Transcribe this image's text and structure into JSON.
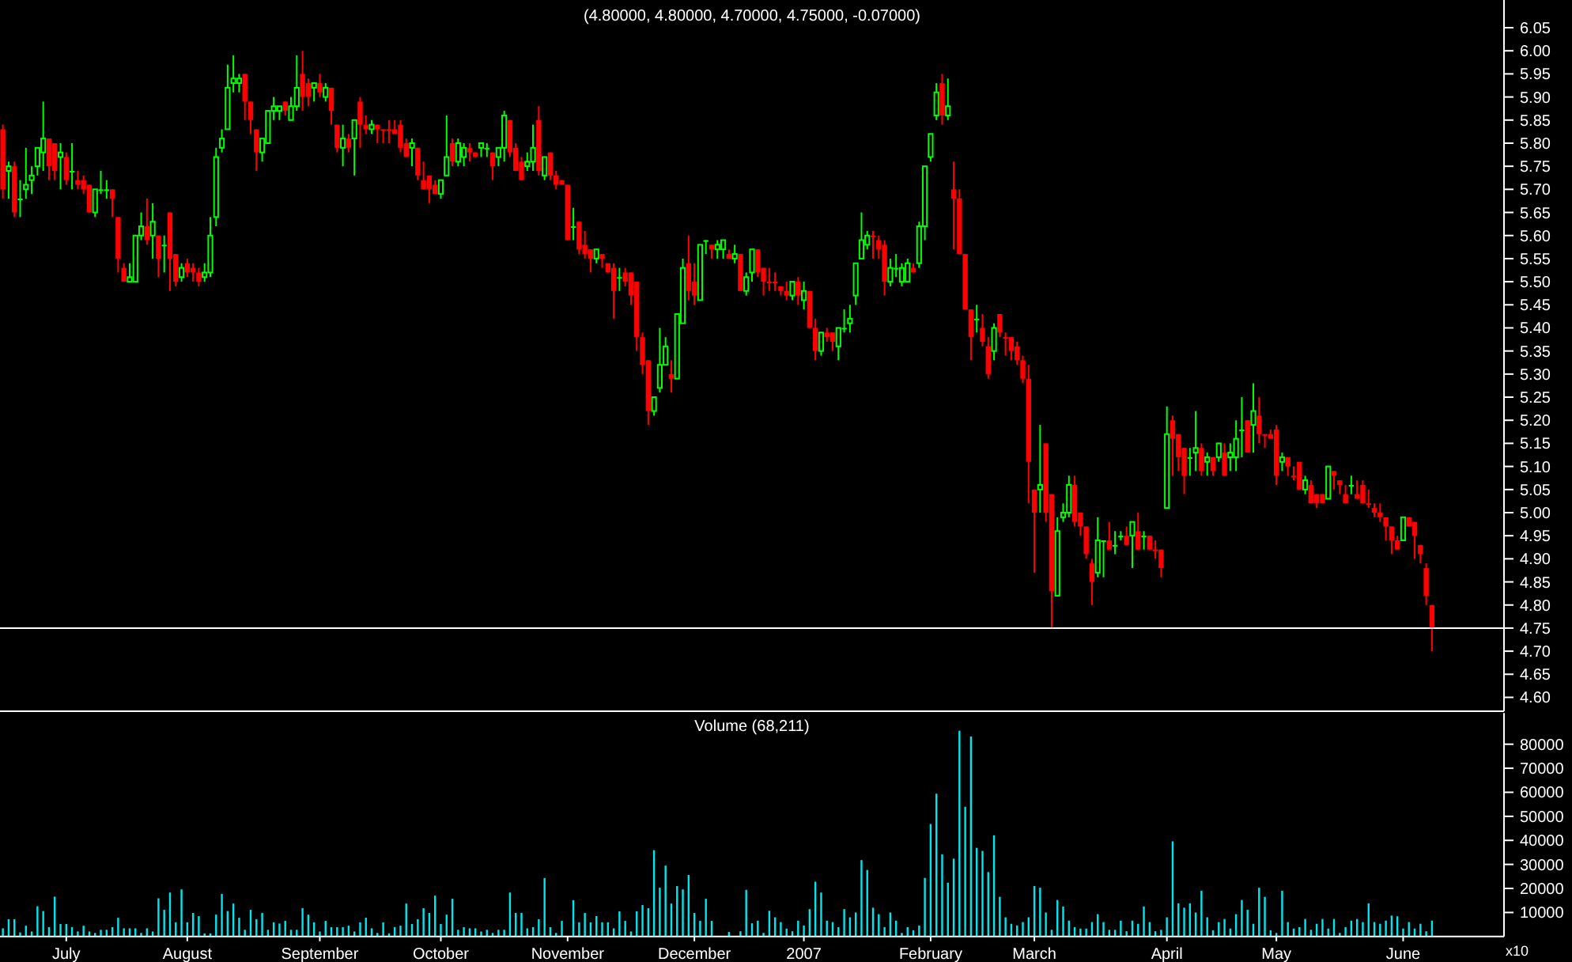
{
  "chart_data": [
    {
      "type": "candlestick",
      "title": "(4.80000, 4.80000, 4.70000, 4.75000, -0.07000)",
      "tick_labels": "y",
      "colors": [
        "#ff0000",
        "#00ff00",
        "#ff0000",
        "#00ff00",
        "#00ff00",
        "#00ff00",
        "#00ff00",
        "#00ff00",
        "#ff0000",
        "#ff0000",
        "#00ff00",
        "#ff0000",
        "#00ff00",
        "#ff0000",
        "#ff0000",
        "#ff0000",
        "#00ff00",
        "#00ff00",
        "#00ff00",
        "#ff0000",
        "#ff0000",
        "#ff0000",
        "#00ff00",
        "#00ff00",
        "#00ff00",
        "#ff0000",
        "#00ff00",
        "#ff0000",
        "#00ff00",
        "#ff0000",
        "#ff0000",
        "#00ff00",
        "#ff0000",
        "#ff0000",
        "#ff0000",
        "#00ff00",
        "#00ff00",
        "#00ff00",
        "#00ff00",
        "#00ff00",
        "#00ff00",
        "#00ff00",
        "#ff0000",
        "#ff0000",
        "#ff0000",
        "#00ff00",
        "#00ff00",
        "#00ff00",
        "#00ff00",
        "#ff0000",
        "#00ff00",
        "#00ff00",
        "#ff0000",
        "#ff0000",
        "#00ff00",
        "#ff0000",
        "#00ff00",
        "#ff0000",
        "#ff0000",
        "#00ff00",
        "#ff0000",
        "#00ff00",
        "#ff0000",
        "#ff0000",
        "#00ff00",
        "#ff0000",
        "#ff0000",
        "#ff0000",
        "#ff0000",
        "#ff0000",
        "#ff0000",
        "#00ff00",
        "#ff0000",
        "#ff0000",
        "#ff0000",
        "#ff0000",
        "#00ff00",
        "#00ff00",
        "#ff0000",
        "#00ff00",
        "#00ff00",
        "#ff0000",
        "#ff0000",
        "#00ff00",
        "#00ff00",
        "#ff0000",
        "#00ff00",
        "#00ff00",
        "#ff0000",
        "#ff0000",
        "#ff0000",
        "#00ff00",
        "#00ff00",
        "#ff0000",
        "#00ff00",
        "#ff0000",
        "#ff0000",
        "#ff0000",
        "#ff0000",
        "#00ff00",
        "#ff0000",
        "#ff0000",
        "#ff0000",
        "#00ff00",
        "#ff0000",
        "#ff0000",
        "#ff0000",
        "#00ff00",
        "#ff0000",
        "#ff0000",
        "#ff0000",
        "#ff0000",
        "#ff0000",
        "#00ff00",
        "#00ff00",
        "#00ff00",
        "#ff0000",
        "#00ff00",
        "#00ff00",
        "#ff0000",
        "#ff0000",
        "#00ff00",
        "#00ff00",
        "#ff0000",
        "#00ff00",
        "#00ff00",
        "#ff0000",
        "#00ff00",
        "#ff0000",
        "#00ff00",
        "#00ff00",
        "#ff0000",
        "#ff0000",
        "#ff0000",
        "#ff0000",
        "#ff0000",
        "#ff0000",
        "#00ff00",
        "#ff0000",
        "#00ff00",
        "#ff0000",
        "#ff0000",
        "#00ff00",
        "#ff0000",
        "#ff0000",
        "#00ff00",
        "#00ff00",
        "#00ff00",
        "#00ff00",
        "#00ff00",
        "#00ff00",
        "#ff0000",
        "#ff0000",
        "#ff0000",
        "#00ff00",
        "#00ff00",
        "#00ff00",
        "#00ff00",
        "#ff0000",
        "#00ff00",
        "#00ff00",
        "#00ff00",
        "#00ff00",
        "#ff0000",
        "#00ff00",
        "#ff0000",
        "#ff0000",
        "#ff0000",
        "#ff0000",
        "#00ff00",
        "#ff0000",
        "#ff0000",
        "#00ff00",
        "#ff0000",
        "#ff0000",
        "#ff0000",
        "#ff0000",
        "#ff0000",
        "#ff0000",
        "#ff0000",
        "#00ff00",
        "#ff0000",
        "#ff0000",
        "#00ff00",
        "#00ff00",
        "#00ff00",
        "#ff0000",
        "#ff0000",
        "#ff0000",
        "#ff0000",
        "#00ff00",
        "#00ff00",
        "#ff0000",
        "#00ff00",
        "#00ff00",
        "#ff0000",
        "#00ff00",
        "#ff0000",
        "#00ff00",
        "#ff0000",
        "#ff0000",
        "#ff0000",
        "#00ff00",
        "#ff0000",
        "#ff0000",
        "#ff0000",
        "#00ff00",
        "#00ff00",
        "#ff0000",
        "#00ff00",
        "#ff0000",
        "#00ff00",
        "#ff0000",
        "#00ff00",
        "#00ff00",
        "#00ff00",
        "#ff0000",
        "#00ff00",
        "#ff0000",
        "#ff0000",
        "#ff0000",
        "#ff0000",
        "#00ff00",
        "#ff0000",
        "#ff0000",
        "#ff0000",
        "#00ff00",
        "#ff0000",
        "#ff0000",
        "#ff0000",
        "#00ff00",
        "#ff0000",
        "#ff0000",
        "#ff0000",
        "#00ff00",
        "#ff0000",
        "#ff0000",
        "#ff0000",
        "#ff0000",
        "#ff0000",
        "#ff0000",
        "#ff0000",
        "#ff0000",
        "#00ff00",
        "#ff0000",
        "#ff0000",
        "#ff0000",
        "#ff0000",
        "#ff0000",
        null,
        null,
        null,
        null,
        null,
        null,
        null,
        null,
        null,
        null,
        null,
        null
      ],
      "ylim": [
        4.57,
        6.11
      ],
      "yticks": [
        {
          "value": 4.6,
          "label": "4.60"
        },
        {
          "value": 4.65,
          "label": "4.65"
        },
        {
          "value": 4.7,
          "label": "4.70"
        },
        {
          "value": 4.75,
          "label": "4.75"
        },
        {
          "value": 4.8,
          "label": "4.80"
        },
        {
          "value": 4.85,
          "label": "4.85"
        },
        {
          "value": 4.9,
          "label": "4.90"
        },
        {
          "value": 4.95,
          "label": "4.95"
        },
        {
          "value": 5.0,
          "label": "5.00"
        },
        {
          "value": 5.05,
          "label": "5.05"
        },
        {
          "value": 5.1,
          "label": "5.10"
        },
        {
          "value": 5.15,
          "label": "5.15"
        },
        {
          "value": 5.2,
          "label": "5.20"
        },
        {
          "value": 5.25,
          "label": "5.25"
        },
        {
          "value": 5.3,
          "label": "5.30"
        },
        {
          "value": 5.35,
          "label": "5.35"
        },
        {
          "value": 5.4,
          "label": "5.40"
        },
        {
          "value": 5.45,
          "label": "5.45"
        },
        {
          "value": 5.5,
          "label": "5.50"
        },
        {
          "value": 5.55,
          "label": "5.55"
        },
        {
          "value": 5.6,
          "label": "5.60"
        },
        {
          "value": 5.65,
          "label": "5.65"
        },
        {
          "value": 5.7,
          "label": "5.70"
        },
        {
          "value": 5.75,
          "label": "5.75"
        },
        {
          "value": 5.8,
          "label": "5.80"
        },
        {
          "value": 5.85,
          "label": "5.85"
        },
        {
          "value": 5.9,
          "label": "5.90"
        },
        {
          "value": 5.95,
          "label": "5.95"
        },
        {
          "value": 6.0,
          "label": "6.00"
        },
        {
          "value": 6.05,
          "label": "6.05"
        }
      ],
      "ref_lines": [
        {
          "axis": "y",
          "value": 4.75,
          "color": "#ffffff"
        }
      ],
      "categories": [
        null,
        null,
        null,
        null,
        null,
        null,
        null,
        null,
        null,
        null,
        null,
        null,
        null,
        null,
        null,
        null,
        null,
        null,
        null,
        null,
        null,
        null,
        null,
        null,
        null,
        null,
        null,
        null,
        null,
        null,
        null,
        null,
        null,
        null,
        null,
        null,
        null,
        null,
        null,
        null,
        null,
        null,
        null,
        null,
        null,
        null,
        null,
        null,
        null,
        null,
        null,
        null,
        null,
        null,
        null,
        null,
        null,
        null,
        null,
        null,
        null,
        null,
        null,
        null,
        null,
        null,
        null,
        null,
        null,
        null,
        null,
        null,
        null,
        null,
        null,
        null,
        null,
        null,
        null,
        null,
        null,
        null,
        null,
        null,
        null,
        null,
        null,
        null,
        null,
        null,
        null,
        null,
        null,
        null,
        null,
        null,
        null,
        null,
        null,
        null,
        null,
        null,
        null,
        null,
        null,
        null,
        null,
        null,
        null,
        null,
        null,
        null,
        null,
        null,
        null,
        null,
        null,
        null,
        null,
        null,
        null,
        null,
        null,
        null,
        null,
        null,
        null,
        null,
        null,
        null,
        null,
        null,
        null,
        null,
        null,
        null,
        null,
        null,
        null,
        null,
        null,
        null,
        null,
        null,
        null,
        null,
        null,
        null,
        null,
        null,
        null,
        null,
        null,
        null,
        null,
        null,
        null,
        null,
        null,
        null,
        null,
        null,
        null,
        null,
        null,
        null,
        null,
        null,
        null,
        null,
        null,
        null,
        null,
        null,
        null,
        null,
        null,
        null,
        null,
        null,
        null,
        null,
        null,
        null,
        null,
        null,
        null,
        null,
        null,
        null,
        null,
        null,
        null,
        null,
        null,
        null,
        null,
        null,
        null,
        null,
        null,
        null,
        null,
        null,
        null,
        null,
        null,
        null,
        null,
        null,
        null,
        null,
        null,
        null,
        null,
        null,
        null,
        null,
        null,
        null,
        null,
        null,
        null,
        null,
        null,
        null,
        null,
        null,
        null,
        null,
        null,
        null,
        null,
        null,
        null,
        null,
        null,
        null,
        null,
        null,
        null,
        null,
        null,
        null,
        null,
        null,
        null,
        null,
        null,
        null,
        null,
        null,
        null,
        null,
        null,
        null,
        null,
        null,
        null,
        null,
        null
      ],
      "ohlc": [
        [
          5.83,
          5.84,
          5.68,
          5.7
        ],
        [
          5.74,
          5.76,
          5.68,
          5.75
        ],
        [
          5.75,
          5.76,
          5.64,
          5.65
        ],
        [
          5.68,
          5.72,
          5.64,
          5.68
        ],
        [
          5.7,
          5.79,
          5.68,
          5.71
        ],
        [
          5.72,
          5.75,
          5.69,
          5.73
        ],
        [
          5.75,
          5.79,
          5.73,
          5.79
        ],
        [
          5.78,
          5.89,
          5.74,
          5.81
        ],
        [
          5.81,
          5.81,
          5.72,
          5.75
        ],
        [
          5.8,
          5.8,
          5.72,
          5.74
        ],
        [
          5.77,
          5.8,
          5.7,
          5.78
        ],
        [
          5.77,
          5.78,
          5.71,
          5.72
        ],
        [
          5.74,
          5.8,
          5.7,
          5.74
        ],
        [
          5.72,
          5.74,
          5.7,
          5.71
        ],
        [
          5.72,
          5.73,
          5.69,
          5.7
        ],
        [
          5.71,
          5.71,
          5.65,
          5.65
        ],
        [
          5.65,
          5.7,
          5.64,
          5.7
        ],
        [
          5.7,
          5.74,
          5.69,
          5.7
        ],
        [
          5.7,
          5.72,
          5.68,
          5.7
        ],
        [
          5.7,
          5.7,
          5.64,
          5.68
        ],
        [
          5.64,
          5.64,
          5.52,
          5.55
        ],
        [
          5.53,
          5.54,
          5.5,
          5.5
        ],
        [
          5.5,
          5.54,
          5.5,
          5.51
        ],
        [
          5.5,
          5.6,
          5.5,
          5.6
        ],
        [
          5.6,
          5.65,
          5.59,
          5.62
        ],
        [
          5.62,
          5.68,
          5.58,
          5.59
        ],
        [
          5.6,
          5.67,
          5.55,
          5.63
        ],
        [
          5.6,
          5.6,
          5.51,
          5.55
        ],
        [
          5.58,
          5.6,
          5.52,
          5.58
        ],
        [
          5.65,
          5.65,
          5.48,
          5.55
        ],
        [
          5.56,
          5.56,
          5.49,
          5.5
        ],
        [
          5.51,
          5.54,
          5.5,
          5.53
        ],
        [
          5.54,
          5.55,
          5.51,
          5.52
        ],
        [
          5.53,
          5.54,
          5.5,
          5.52
        ],
        [
          5.52,
          5.53,
          5.49,
          5.5
        ],
        [
          5.51,
          5.54,
          5.5,
          5.52
        ],
        [
          5.52,
          5.64,
          5.51,
          5.6
        ],
        [
          5.64,
          5.79,
          5.62,
          5.77
        ],
        [
          5.79,
          5.83,
          5.78,
          5.81
        ],
        [
          5.83,
          5.97,
          5.83,
          5.92
        ],
        [
          5.93,
          5.99,
          5.91,
          5.94
        ],
        [
          5.93,
          5.95,
          5.91,
          5.94
        ],
        [
          5.95,
          5.95,
          5.85,
          5.89
        ],
        [
          5.89,
          5.89,
          5.82,
          5.85
        ],
        [
          5.83,
          5.83,
          5.74,
          5.78
        ],
        [
          5.78,
          5.81,
          5.76,
          5.81
        ],
        [
          5.8,
          5.87,
          5.8,
          5.87
        ],
        [
          5.87,
          5.9,
          5.85,
          5.88
        ],
        [
          5.87,
          5.88,
          5.85,
          5.88
        ],
        [
          5.89,
          5.89,
          5.86,
          5.87
        ],
        [
          5.85,
          5.9,
          5.85,
          5.88
        ],
        [
          5.88,
          5.99,
          5.87,
          5.92
        ],
        [
          5.95,
          6.0,
          5.87,
          5.9
        ],
        [
          5.93,
          5.94,
          5.88,
          5.9
        ],
        [
          5.92,
          5.93,
          5.89,
          5.93
        ],
        [
          5.93,
          5.95,
          5.9,
          5.91
        ],
        [
          5.9,
          5.93,
          5.89,
          5.92
        ],
        [
          5.92,
          5.92,
          5.84,
          5.87
        ],
        [
          5.84,
          5.84,
          5.78,
          5.79
        ],
        [
          5.79,
          5.84,
          5.75,
          5.81
        ],
        [
          5.81,
          5.82,
          5.78,
          5.79
        ],
        [
          5.81,
          5.85,
          5.73,
          5.85
        ],
        [
          5.89,
          5.9,
          5.79,
          5.84
        ],
        [
          5.84,
          5.86,
          5.82,
          5.83
        ],
        [
          5.83,
          5.85,
          5.82,
          5.84
        ],
        [
          5.84,
          5.84,
          5.8,
          5.83
        ],
        [
          5.83,
          5.83,
          5.8,
          5.83
        ],
        [
          5.83,
          5.85,
          5.8,
          5.83
        ],
        [
          5.83,
          5.85,
          5.82,
          5.82
        ],
        [
          5.84,
          5.85,
          5.78,
          5.79
        ],
        [
          5.8,
          5.81,
          5.77,
          5.77
        ],
        [
          5.79,
          5.81,
          5.75,
          5.8
        ],
        [
          5.79,
          5.79,
          5.72,
          5.73
        ],
        [
          5.72,
          5.76,
          5.7,
          5.7
        ],
        [
          5.73,
          5.73,
          5.67,
          5.7
        ],
        [
          5.71,
          5.72,
          5.69,
          5.69
        ],
        [
          5.69,
          5.72,
          5.68,
          5.72
        ],
        [
          5.73,
          5.86,
          5.73,
          5.77
        ],
        [
          5.8,
          5.81,
          5.75,
          5.76
        ],
        [
          5.76,
          5.81,
          5.75,
          5.8
        ],
        [
          5.77,
          5.8,
          5.75,
          5.79
        ],
        [
          5.79,
          5.8,
          5.76,
          5.78
        ],
        [
          5.78,
          5.78,
          5.77,
          5.77
        ],
        [
          5.79,
          5.8,
          5.77,
          5.8
        ],
        [
          5.79,
          5.8,
          5.77,
          5.79
        ],
        [
          5.78,
          5.78,
          5.72,
          5.75
        ],
        [
          5.77,
          5.79,
          5.75,
          5.79
        ],
        [
          5.79,
          5.87,
          5.76,
          5.86
        ],
        [
          5.85,
          5.85,
          5.77,
          5.78
        ],
        [
          5.79,
          5.8,
          5.74,
          5.74
        ],
        [
          5.76,
          5.77,
          5.72,
          5.72
        ],
        [
          5.75,
          5.78,
          5.74,
          5.76
        ],
        [
          5.76,
          5.84,
          5.74,
          5.79
        ],
        [
          5.85,
          5.88,
          5.73,
          5.74
        ],
        [
          5.73,
          5.77,
          5.72,
          5.77
        ],
        [
          5.78,
          5.78,
          5.72,
          5.73
        ],
        [
          5.73,
          5.74,
          5.7,
          5.71
        ],
        [
          5.72,
          5.72,
          5.71,
          5.71
        ],
        [
          5.71,
          5.71,
          5.59,
          5.59
        ],
        [
          5.62,
          5.66,
          5.59,
          5.62
        ],
        [
          5.63,
          5.63,
          5.56,
          5.57
        ],
        [
          5.58,
          5.61,
          5.55,
          5.56
        ],
        [
          5.57,
          5.57,
          5.52,
          5.55
        ],
        [
          5.55,
          5.57,
          5.54,
          5.57
        ],
        [
          5.56,
          5.56,
          5.53,
          5.55
        ],
        [
          5.54,
          5.54,
          5.52,
          5.52
        ],
        [
          5.53,
          5.54,
          5.42,
          5.48
        ],
        [
          5.51,
          5.53,
          5.48,
          5.51
        ],
        [
          5.52,
          5.53,
          5.49,
          5.5
        ],
        [
          5.52,
          5.52,
          5.45,
          5.47
        ],
        [
          5.5,
          5.5,
          5.35,
          5.38
        ],
        [
          5.38,
          5.39,
          5.3,
          5.32
        ],
        [
          5.33,
          5.33,
          5.19,
          5.22
        ],
        [
          5.22,
          5.25,
          5.21,
          5.25
        ],
        [
          5.27,
          5.4,
          5.26,
          5.32
        ],
        [
          5.32,
          5.38,
          5.32,
          5.36
        ],
        [
          5.3,
          5.33,
          5.26,
          5.29
        ],
        [
          5.29,
          5.43,
          5.29,
          5.43
        ],
        [
          5.41,
          5.55,
          5.41,
          5.53
        ],
        [
          5.54,
          5.6,
          5.46,
          5.48
        ],
        [
          5.5,
          5.54,
          5.45,
          5.47
        ],
        [
          5.46,
          5.58,
          5.46,
          5.58
        ],
        [
          5.59,
          5.59,
          5.56,
          5.59
        ],
        [
          5.58,
          5.58,
          5.55,
          5.57
        ],
        [
          5.57,
          5.59,
          5.55,
          5.58
        ],
        [
          5.57,
          5.59,
          5.55,
          5.59
        ],
        [
          5.56,
          5.57,
          5.55,
          5.55
        ],
        [
          5.55,
          5.58,
          5.54,
          5.56
        ],
        [
          5.56,
          5.56,
          5.48,
          5.48
        ],
        [
          5.48,
          5.52,
          5.47,
          5.51
        ],
        [
          5.52,
          5.57,
          5.5,
          5.57
        ],
        [
          5.57,
          5.57,
          5.51,
          5.52
        ],
        [
          5.53,
          5.53,
          5.47,
          5.5
        ],
        [
          5.5,
          5.53,
          5.48,
          5.5
        ],
        [
          5.5,
          5.52,
          5.48,
          5.5
        ],
        [
          5.49,
          5.49,
          5.47,
          5.48
        ],
        [
          5.48,
          5.5,
          5.46,
          5.47
        ],
        [
          5.47,
          5.5,
          5.46,
          5.5
        ],
        [
          5.5,
          5.51,
          5.45,
          5.47
        ],
        [
          5.46,
          5.5,
          5.44,
          5.48
        ],
        [
          5.48,
          5.48,
          5.4,
          5.4
        ],
        [
          5.4,
          5.42,
          5.33,
          5.35
        ],
        [
          5.35,
          5.39,
          5.34,
          5.39
        ],
        [
          5.39,
          5.4,
          5.37,
          5.38
        ],
        [
          5.39,
          5.39,
          5.35,
          5.37
        ],
        [
          5.36,
          5.4,
          5.33,
          5.4
        ],
        [
          5.4,
          5.44,
          5.39,
          5.4
        ],
        [
          5.41,
          5.45,
          5.39,
          5.42
        ],
        [
          5.47,
          5.54,
          5.45,
          5.54
        ],
        [
          5.55,
          5.65,
          5.55,
          5.59
        ],
        [
          5.58,
          5.61,
          5.57,
          5.6
        ],
        [
          5.6,
          5.61,
          5.55,
          5.6
        ],
        [
          5.59,
          5.6,
          5.55,
          5.57
        ],
        [
          5.58,
          5.59,
          5.47,
          5.5
        ],
        [
          5.5,
          5.55,
          5.49,
          5.53
        ],
        [
          5.53,
          5.56,
          5.51,
          5.53
        ],
        [
          5.5,
          5.54,
          5.49,
          5.53
        ],
        [
          5.5,
          5.55,
          5.5,
          5.54
        ],
        [
          5.53,
          5.54,
          5.52,
          5.52
        ],
        [
          5.54,
          5.63,
          5.53,
          5.62
        ],
        [
          5.62,
          5.75,
          5.59,
          5.75
        ],
        [
          5.77,
          5.82,
          5.76,
          5.82
        ],
        [
          5.86,
          5.93,
          5.85,
          5.91
        ],
        [
          5.93,
          5.95,
          5.84,
          5.86
        ],
        [
          5.86,
          5.94,
          5.85,
          5.88
        ],
        [
          5.7,
          5.76,
          5.57,
          5.68
        ],
        [
          5.68,
          5.7,
          5.56,
          5.56
        ],
        [
          5.56,
          5.56,
          5.44,
          5.44
        ],
        [
          5.44,
          5.44,
          5.33,
          5.38
        ],
        [
          5.42,
          5.45,
          5.39,
          5.42
        ],
        [
          5.4,
          5.43,
          5.36,
          5.37
        ],
        [
          5.36,
          5.38,
          5.29,
          5.3
        ],
        [
          5.35,
          5.41,
          5.33,
          5.4
        ],
        [
          5.43,
          5.43,
          5.38,
          5.39
        ],
        [
          5.38,
          5.39,
          5.34,
          5.38
        ],
        [
          5.38,
          5.38,
          5.33,
          5.35
        ],
        [
          5.36,
          5.37,
          5.32,
          5.33
        ],
        [
          5.33,
          5.34,
          5.28,
          5.29
        ],
        [
          5.29,
          5.32,
          5.02,
          5.11
        ],
        [
          5.05,
          5.05,
          4.87,
          5.0
        ],
        [
          5.05,
          5.19,
          5.0,
          5.06
        ],
        [
          5.15,
          5.15,
          4.98,
          5.0
        ],
        [
          5.04,
          5.04,
          4.75,
          4.83
        ],
        [
          4.82,
          4.99,
          4.82,
          4.96
        ],
        [
          4.99,
          5.02,
          4.98,
          5.0
        ],
        [
          5.0,
          5.08,
          4.99,
          5.06
        ],
        [
          5.06,
          5.08,
          4.97,
          4.98
        ],
        [
          5.0,
          5.0,
          4.95,
          4.97
        ],
        [
          4.97,
          4.97,
          4.9,
          4.91
        ],
        [
          4.89,
          4.9,
          4.8,
          4.85
        ],
        [
          4.87,
          4.99,
          4.86,
          4.94
        ],
        [
          4.94,
          4.94,
          4.86,
          4.94
        ],
        [
          4.94,
          4.98,
          4.92,
          4.92
        ],
        [
          4.93,
          4.96,
          4.91,
          4.93
        ],
        [
          4.95,
          4.96,
          4.94,
          4.95
        ],
        [
          4.95,
          4.97,
          4.93,
          4.93
        ],
        [
          4.95,
          4.98,
          4.88,
          4.98
        ],
        [
          4.96,
          5.0,
          4.92,
          4.92
        ],
        [
          4.95,
          4.96,
          4.92,
          4.95
        ],
        [
          4.95,
          4.95,
          4.92,
          4.92
        ],
        [
          4.92,
          4.94,
          4.9,
          4.92
        ],
        [
          4.92,
          4.92,
          4.86,
          4.88
        ],
        [
          5.01,
          5.23,
          5.01,
          5.17
        ],
        [
          5.2,
          5.21,
          5.08,
          5.16
        ],
        [
          5.17,
          5.17,
          5.09,
          5.12
        ],
        [
          5.14,
          5.14,
          5.04,
          5.08
        ],
        [
          5.12,
          5.14,
          5.08,
          5.12
        ],
        [
          5.13,
          5.22,
          5.09,
          5.14
        ],
        [
          5.14,
          5.15,
          5.08,
          5.09
        ],
        [
          5.11,
          5.13,
          5.08,
          5.12
        ],
        [
          5.12,
          5.12,
          5.08,
          5.09
        ],
        [
          5.12,
          5.15,
          5.11,
          5.15
        ],
        [
          5.13,
          5.15,
          5.08,
          5.08
        ],
        [
          5.12,
          5.15,
          5.09,
          5.13
        ],
        [
          5.12,
          5.2,
          5.09,
          5.16
        ],
        [
          5.18,
          5.25,
          5.12,
          5.18
        ],
        [
          5.2,
          5.2,
          5.13,
          5.13
        ],
        [
          5.19,
          5.28,
          5.13,
          5.22
        ],
        [
          5.21,
          5.25,
          5.15,
          5.17
        ],
        [
          5.17,
          5.17,
          5.14,
          5.17
        ],
        [
          5.17,
          5.18,
          5.16,
          5.16
        ],
        [
          5.18,
          5.19,
          5.06,
          5.08
        ],
        [
          5.11,
          5.13,
          5.09,
          5.12
        ],
        [
          5.12,
          5.12,
          5.08,
          5.1
        ],
        [
          5.08,
          5.1,
          5.07,
          5.08
        ],
        [
          5.11,
          5.11,
          5.05,
          5.05
        ],
        [
          5.05,
          5.08,
          5.04,
          5.07
        ],
        [
          5.06,
          5.07,
          5.02,
          5.02
        ],
        [
          5.04,
          5.04,
          5.01,
          5.02
        ],
        [
          5.04,
          5.04,
          5.02,
          5.02
        ],
        [
          5.03,
          5.1,
          5.03,
          5.1
        ],
        [
          5.09,
          5.09,
          5.05,
          5.08
        ],
        [
          5.07,
          5.07,
          5.04,
          5.06
        ],
        [
          5.04,
          5.06,
          5.02,
          5.02
        ],
        [
          5.06,
          5.08,
          5.04,
          5.06
        ],
        [
          5.04,
          5.07,
          5.03,
          5.03
        ],
        [
          5.06,
          5.07,
          5.02,
          5.02
        ],
        [
          5.02,
          5.05,
          5.01,
          5.02
        ],
        [
          5.01,
          5.02,
          4.99,
          5.0
        ],
        [
          5.0,
          5.02,
          4.98,
          4.99
        ],
        [
          4.99,
          4.99,
          4.94,
          4.97
        ],
        [
          4.97,
          4.97,
          4.91,
          4.94
        ],
        [
          4.94,
          4.95,
          4.92,
          4.92
        ],
        [
          4.94,
          4.99,
          4.94,
          4.99
        ],
        [
          4.99,
          4.99,
          4.97,
          4.97
        ],
        [
          4.98,
          4.98,
          4.9,
          4.95
        ],
        [
          4.93,
          4.93,
          4.89,
          4.91
        ],
        [
          4.88,
          4.89,
          4.8,
          4.82
        ],
        [
          4.8,
          4.8,
          4.7,
          4.75
        ],
        null,
        null,
        null,
        null,
        null,
        null,
        null,
        null,
        null,
        null,
        null,
        null
      ]
    },
    {
      "type": "bar",
      "title": "Volume (68,211)",
      "color": "#00e5ee",
      "ylim": [
        0,
        93000
      ],
      "yticks": [
        10000,
        20000,
        30000,
        40000,
        50000,
        60000,
        70000,
        80000
      ],
      "annotations": [
        "x10"
      ],
      "categories": [
        null,
        null,
        null,
        null,
        null,
        null,
        null,
        null,
        null,
        null,
        null,
        "July",
        null,
        null,
        null,
        null,
        null,
        null,
        null,
        null,
        null,
        null,
        null,
        null,
        null,
        null,
        null,
        null,
        null,
        null,
        null,
        null,
        "August",
        null,
        null,
        null,
        null,
        null,
        null,
        null,
        null,
        null,
        null,
        null,
        null,
        null,
        null,
        null,
        null,
        null,
        null,
        null,
        null,
        null,
        null,
        "September",
        null,
        null,
        null,
        null,
        null,
        null,
        null,
        null,
        null,
        null,
        null,
        null,
        null,
        null,
        null,
        null,
        null,
        null,
        null,
        null,
        "October",
        null,
        null,
        null,
        null,
        null,
        null,
        null,
        null,
        null,
        null,
        null,
        null,
        null,
        null,
        null,
        null,
        null,
        null,
        null,
        null,
        null,
        "November",
        null,
        null,
        null,
        null,
        null,
        null,
        null,
        null,
        null,
        null,
        null,
        null,
        null,
        null,
        null,
        null,
        null,
        null,
        null,
        null,
        null,
        "December",
        null,
        null,
        null,
        null,
        null,
        null,
        null,
        null,
        null,
        null,
        null,
        null,
        null,
        null,
        null,
        null,
        null,
        null,
        "2007",
        null,
        null,
        null,
        null,
        null,
        null,
        null,
        null,
        null,
        null,
        null,
        null,
        null,
        null,
        null,
        null,
        null,
        null,
        null,
        null,
        null,
        "February",
        null,
        null,
        null,
        null,
        null,
        null,
        null,
        null,
        null,
        null,
        null,
        null,
        null,
        null,
        null,
        null,
        null,
        "March",
        null,
        null,
        null,
        null,
        null,
        null,
        null,
        null,
        null,
        null,
        null,
        null,
        null,
        null,
        null,
        null,
        null,
        null,
        null,
        null,
        null,
        null,
        "April",
        null,
        null,
        null,
        null,
        null,
        null,
        null,
        null,
        null,
        null,
        null,
        null,
        null,
        null,
        null,
        null,
        null,
        null,
        "May",
        null,
        null,
        null,
        null,
        null,
        null,
        null,
        null,
        null,
        null,
        null,
        null,
        null,
        null,
        null,
        null,
        null,
        null,
        null,
        null,
        null,
        "June",
        null,
        null,
        null,
        null,
        null,
        null,
        null,
        null,
        null,
        null,
        null,
        null,
        null,
        null,
        null,
        null,
        null
      ],
      "values": [
        3400,
        7200,
        7200,
        1700,
        4500,
        2100,
        12600,
        10600,
        3900,
        16600,
        5200,
        5200,
        3900,
        2100,
        4500,
        2100,
        1500,
        2800,
        2800,
        3900,
        7800,
        3400,
        3400,
        3400,
        1500,
        3400,
        2100,
        15900,
        11100,
        18300,
        5900,
        19600,
        5900,
        9800,
        8500,
        1300,
        1300,
        9100,
        17700,
        10600,
        13700,
        7800,
        2800,
        11100,
        7200,
        9800,
        2800,
        5900,
        5400,
        6500,
        2800,
        2800,
        11800,
        9100,
        5900,
        2100,
        6500,
        3900,
        3900,
        3900,
        4500,
        2100,
        5900,
        7800,
        3400,
        1500,
        5900,
        1300,
        3900,
        4500,
        13700,
        5200,
        7200,
        11800,
        9800,
        17000,
        5200,
        9100,
        15700,
        2800,
        3900,
        3400,
        3400,
        2100,
        2800,
        1500,
        2800,
        2800,
        18300,
        9800,
        9800,
        3400,
        3900,
        7200,
        24300,
        3900,
        1500,
        6500,
        null,
        15100,
        5900,
        9800,
        5900,
        8500,
        5900,
        5900,
        3400,
        10500,
        6500,
        2100,
        10500,
        13100,
        11800,
        35900,
        20300,
        29500,
        13700,
        21000,
        19600,
        25600,
        9800,
        6500,
        15700,
        6500,
        null,
        null,
        1900,
        null,
        2200,
        19400,
        5500,
        6600,
        1500,
        10700,
        8000,
        6000,
        3300,
        2200,
        6600,
        4600,
        11400,
        22800,
        18300,
        6600,
        6000,
        3900,
        11400,
        8000,
        10000,
        31800,
        27700,
        12000,
        9300,
        3900,
        10000,
        6600,
        1500,
        3900,
        2600,
        4600,
        24400,
        46800,
        59400,
        34200,
        22400,
        32400,
        85600,
        54000,
        83200,
        36900,
        35600,
        26800,
        42100,
        16500,
        8000,
        5300,
        4600,
        6000,
        8000,
        21000,
        20300,
        10000,
        2800,
        15200,
        12500,
        6600,
        3900,
        3300,
        3300,
        6000,
        9300,
        6000,
        2800,
        2800,
        6600,
        2200,
        6600,
        5300,
        12500,
        6000,
        2200,
        2800,
        8000,
        39600,
        13800,
        12000,
        13800,
        10000,
        19000,
        8000,
        2600,
        6000,
        7300,
        3300,
        9300,
        15200,
        11100,
        5300,
        20300,
        16500,
        2600,
        1500,
        19000,
        6000,
        3300,
        3900,
        7300,
        2800,
        5300,
        7300,
        3300,
        7300,
        1500,
        3900,
        6600,
        7300,
        6000,
        13800,
        6000,
        5300,
        6600,
        8700,
        8400,
        3300,
        6000,
        3300,
        5300,
        2200,
        6600,
        null,
        null,
        null,
        null,
        null,
        null,
        null,
        null,
        null,
        null,
        null,
        null
      ]
    }
  ]
}
